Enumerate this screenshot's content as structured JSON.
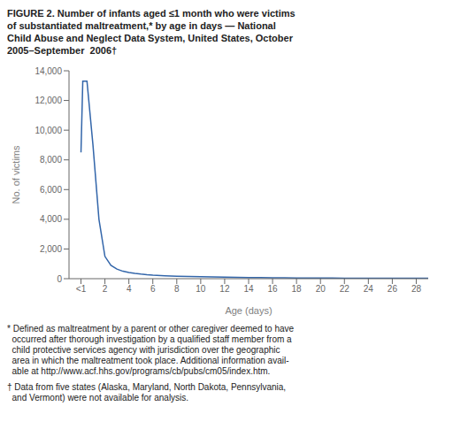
{
  "chart_data": {
    "type": "line",
    "title": "FIGURE 2. Number of infants aged ≤1 month who were victims\nof substantiated maltreatment,* by age in days — National\nChild Abuse and Neglect Data System, United States, October\n2005–September  2006†",
    "x_label": "Age (days)",
    "y_label": "No. of victims",
    "x": [
      0,
      0.15,
      0.5,
      1.0,
      1.5,
      2.0,
      2.5,
      3.0,
      3.5,
      4.0,
      4.5,
      5.0,
      5.5,
      6.0,
      7.0,
      8.0,
      9.0,
      10.0,
      11.0,
      12.0,
      13.0,
      14.0,
      15.0,
      16.0,
      17.0,
      18.0,
      19.0,
      20.0,
      21.0,
      22.0,
      23.0,
      24.0,
      25.0,
      26.0,
      27.0,
      28.0,
      29.0
    ],
    "values": [
      8500,
      13300,
      13300,
      9000,
      4000,
      1500,
      900,
      650,
      500,
      420,
      360,
      310,
      270,
      240,
      200,
      170,
      150,
      130,
      115,
      100,
      90,
      80,
      72,
      65,
      58,
      52,
      47,
      43,
      39,
      36,
      33,
      31,
      29,
      27,
      26,
      24,
      23
    ],
    "color": "#3366aa",
    "xlim": [
      -1,
      29
    ],
    "xticks": [
      {
        "value": 0,
        "label": "<1"
      },
      2,
      4,
      6,
      8,
      10,
      12,
      14,
      16,
      18,
      20,
      22,
      24,
      26,
      28
    ],
    "ylim": [
      0,
      14000
    ],
    "yticks": [
      0,
      {
        "value": 2000,
        "label": "2,000"
      },
      {
        "value": 4000,
        "label": "4,000"
      },
      {
        "value": 6000,
        "label": "6,000"
      },
      {
        "value": 8000,
        "label": "8,000"
      },
      {
        "value": 10000,
        "label": "10,000"
      },
      {
        "value": 12000,
        "label": "12,000"
      },
      {
        "value": 14000,
        "label": "14,000"
      }
    ],
    "grid": false,
    "annotations": [
      "* Defined as maltreatment by a parent or other caregiver deemed to have\n  occurred after thorough investigation by a qualified staff member from a\n  child protective services agency with jurisdiction over the geographic\n  area in which the maltreatment took place. Additional information avail-\n  able at http://www.acf.hhs.gov/programs/cb/pubs/cm05/index.htm.",
      "† Data from five states (Alaska, Maryland, North Dakota, Pennsylvania,\n  and Vermont) were not available for analysis."
    ]
  }
}
